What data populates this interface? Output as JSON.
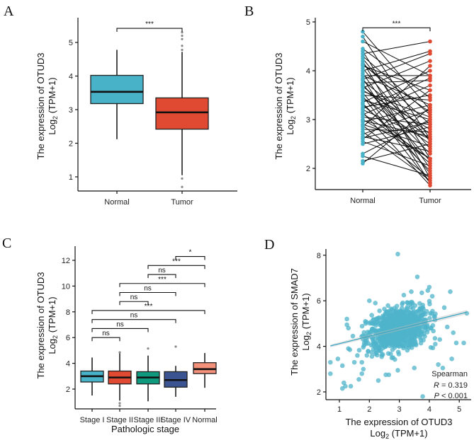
{
  "chart_data": [
    {
      "panel": "A",
      "type": "box",
      "categories": [
        "Normal",
        "Tumor"
      ],
      "ylabel_line1": "The expression of OTUD3",
      "ylabel_line2": {
        "base": "Log",
        "sub": "2",
        "rest": " (TPM+1)"
      },
      "yticks": [
        1,
        2,
        3,
        4,
        5
      ],
      "ylim": [
        0.58,
        5.7
      ],
      "colors": [
        "#48b3c8",
        "#e04a33"
      ],
      "boxes": [
        {
          "q1": 3.18,
          "median": 3.53,
          "q3": 4.02,
          "low": 2.12,
          "high": 4.78,
          "outliers": []
        },
        {
          "q1": 2.42,
          "median": 2.92,
          "q3": 3.35,
          "low": 1.05,
          "high": 4.72,
          "outliers": [
            4.78,
            4.9,
            5.1,
            5.2,
            5.3,
            0.95,
            0.7
          ]
        }
      ],
      "comparisons": [
        {
          "from": 0,
          "to": 1,
          "y": 5.42,
          "label": "***"
        }
      ]
    },
    {
      "panel": "B",
      "type": "paired",
      "categories": [
        "Normal",
        "Tumor"
      ],
      "ylabel_line1": "The expression of OTUD3",
      "ylabel_line2": {
        "base": "Log",
        "sub": "2",
        "rest": " (TPM+1)"
      },
      "yticks": [
        2,
        3,
        4,
        5
      ],
      "ylim": [
        1.57,
        5.1
      ],
      "colors": [
        "#48b3c8",
        "#e04a33"
      ],
      "pairs": [
        [
          4.8,
          3.2
        ],
        [
          4.7,
          2.6
        ],
        [
          4.6,
          3.9
        ],
        [
          4.4,
          2.2
        ],
        [
          4.35,
          4.6
        ],
        [
          4.3,
          3.1
        ],
        [
          4.2,
          1.8
        ],
        [
          4.15,
          2.9
        ],
        [
          4.1,
          3.6
        ],
        [
          4.05,
          2.4
        ],
        [
          4.0,
          4.4
        ],
        [
          3.95,
          2.0
        ],
        [
          3.9,
          3.3
        ],
        [
          3.85,
          1.7
        ],
        [
          3.8,
          2.7
        ],
        [
          3.75,
          3.8
        ],
        [
          3.7,
          2.3
        ],
        [
          3.65,
          4.2
        ],
        [
          3.6,
          2.8
        ],
        [
          3.55,
          1.9
        ],
        [
          3.5,
          3.4
        ],
        [
          3.45,
          2.5
        ],
        [
          3.4,
          3.0
        ],
        [
          3.35,
          4.0
        ],
        [
          3.3,
          2.1
        ],
        [
          3.25,
          3.5
        ],
        [
          3.2,
          2.6
        ],
        [
          3.15,
          1.65
        ],
        [
          3.1,
          3.7
        ],
        [
          3.05,
          2.9
        ],
        [
          3.0,
          2.2
        ],
        [
          2.95,
          3.3
        ],
        [
          2.9,
          2.45
        ],
        [
          2.85,
          4.1
        ],
        [
          2.8,
          2.75
        ],
        [
          2.75,
          1.75
        ],
        [
          2.7,
          3.2
        ],
        [
          2.65,
          2.35
        ],
        [
          2.6,
          3.6
        ],
        [
          2.55,
          2.05
        ],
        [
          2.5,
          2.85
        ],
        [
          2.3,
          3.0
        ],
        [
          2.25,
          1.85
        ],
        [
          2.15,
          2.5
        ],
        [
          2.1,
          3.25
        ],
        [
          3.9,
          3.9
        ],
        [
          4.25,
          2.55
        ],
        [
          3.58,
          3.05
        ],
        [
          3.33,
          1.95
        ],
        [
          3.72,
          2.15
        ],
        [
          2.98,
          2.65
        ],
        [
          4.45,
          3.45
        ],
        [
          3.12,
          2.2
        ],
        [
          3.82,
          4.35
        ],
        [
          2.62,
          2.95
        ],
        [
          3.48,
          1.7
        ],
        [
          4.12,
          3.15
        ],
        [
          3.22,
          3.85
        ],
        [
          2.88,
          1.8
        ],
        [
          3.68,
          2.6
        ]
      ],
      "comparisons": [
        {
          "from": 0,
          "to": 1,
          "y": 4.88,
          "label": "***"
        }
      ]
    },
    {
      "panel": "C",
      "type": "box",
      "categories": [
        "Stage I",
        "Stage II",
        "Stage III",
        "Stage IV",
        "Normal"
      ],
      "xlabel": "Pathologic stage",
      "ylabel_line1": "The expression of OTUD3",
      "ylabel_line2": {
        "base": "Log",
        "sub": "2",
        "rest": " (TPM+1)"
      },
      "yticks": [
        2,
        4,
        6,
        8,
        10,
        12
      ],
      "ylim": [
        0.46,
        13.1
      ],
      "colors": [
        "#48b3c8",
        "#e04a33",
        "#0f9a7f",
        "#3b5391",
        "#f3917a"
      ],
      "boxes": [
        {
          "q1": 2.55,
          "median": 3.0,
          "q3": 3.4,
          "low": 1.5,
          "high": 4.45,
          "outliers": []
        },
        {
          "q1": 2.4,
          "median": 2.9,
          "q3": 3.4,
          "low": 1.1,
          "high": 4.9,
          "outliers": [
            0.9,
            0.7,
            4.85
          ]
        },
        {
          "q1": 2.4,
          "median": 2.9,
          "q3": 3.35,
          "low": 1.05,
          "high": 4.6,
          "outliers": [
            5.15
          ]
        },
        {
          "q1": 2.15,
          "median": 2.7,
          "q3": 3.35,
          "low": 1.4,
          "high": 3.8,
          "outliers": [
            5.3
          ]
        },
        {
          "q1": 3.2,
          "median": 3.55,
          "q3": 4.05,
          "low": 2.1,
          "high": 4.8,
          "outliers": []
        }
      ],
      "comparisons": [
        {
          "from": 0,
          "to": 1,
          "y": 6.0,
          "label": "ns"
        },
        {
          "from": 0,
          "to": 2,
          "y": 6.7,
          "label": "ns"
        },
        {
          "from": 0,
          "to": 3,
          "y": 7.4,
          "label": "ns"
        },
        {
          "from": 0,
          "to": 4,
          "y": 8.1,
          "label": "***"
        },
        {
          "from": 1,
          "to": 2,
          "y": 8.8,
          "label": "ns"
        },
        {
          "from": 1,
          "to": 3,
          "y": 9.5,
          "label": "ns"
        },
        {
          "from": 1,
          "to": 4,
          "y": 10.2,
          "label": "***"
        },
        {
          "from": 2,
          "to": 3,
          "y": 10.9,
          "label": "ns"
        },
        {
          "from": 2,
          "to": 4,
          "y": 11.6,
          "label": "***"
        },
        {
          "from": 3,
          "to": 4,
          "y": 12.3,
          "label": "*"
        }
      ]
    },
    {
      "panel": "D",
      "type": "scatter",
      "xlabel_line1": "The expression of OTUD3",
      "xlabel_line2": {
        "base": "Log",
        "sub": "2",
        "rest": " (TPM+1)"
      },
      "ylabel_line1": "The expression of SMAD7",
      "ylabel_line2": {
        "base": "Log",
        "sub": "2",
        "rest": " (TPM+1)"
      },
      "xticks": [
        1,
        2,
        3,
        4,
        5
      ],
      "yticks": [
        2,
        4,
        6,
        8
      ],
      "xlim": [
        0.62,
        5.45
      ],
      "ylim": [
        1.66,
        8.3
      ],
      "color": "#4fb4cb",
      "regression": {
        "x": [
          0.7,
          5.25
        ],
        "y": [
          4.02,
          5.5
        ]
      },
      "stats": {
        "method": "Spearman",
        "r_label": "R",
        "r_text": " = 0.319",
        "p_label": "P",
        "p_text": " < 0.001"
      },
      "points": [
        [
          0.7,
          3.3
        ],
        [
          0.7,
          2.8
        ],
        [
          0.95,
          3.45
        ],
        [
          1.1,
          3.15
        ],
        [
          1.15,
          2.4
        ],
        [
          1.1,
          2.15
        ],
        [
          1.2,
          2.25
        ],
        [
          1.38,
          2.25
        ],
        [
          1.25,
          5.2
        ],
        [
          1.25,
          4.95
        ],
        [
          1.3,
          4.8
        ],
        [
          1.45,
          4.45
        ],
        [
          1.3,
          3.9
        ],
        [
          1.35,
          3.85
        ],
        [
          1.5,
          3.3
        ],
        [
          1.6,
          3.6
        ],
        [
          1.65,
          2.55
        ],
        [
          1.75,
          2.8
        ],
        [
          1.8,
          3.0
        ],
        [
          1.75,
          3.3
        ],
        [
          2.3,
          2.5
        ],
        [
          2.55,
          2.75
        ],
        [
          2.65,
          2.75
        ],
        [
          2.95,
          2.95
        ],
        [
          2.95,
          8.05
        ],
        [
          3.6,
          7.05
        ],
        [
          3.95,
          6.45
        ],
        [
          4.0,
          6.6
        ],
        [
          4.7,
          6.4
        ],
        [
          4.5,
          5.7
        ],
        [
          5.25,
          5.45
        ],
        [
          4.6,
          4.85
        ],
        [
          4.8,
          4.6
        ],
        [
          4.9,
          4.15
        ],
        [
          5.15,
          4.15
        ],
        [
          4.3,
          3.2
        ],
        [
          4.45,
          3.05
        ],
        [
          4.75,
          3.45
        ],
        [
          3.78,
          1.8
        ],
        [
          3.5,
          3.05
        ],
        [
          4.05,
          3.95
        ],
        [
          4.2,
          4.1
        ],
        [
          4.35,
          4.3
        ],
        [
          2.0,
          6.0
        ],
        [
          2.2,
          5.9
        ],
        [
          3.4,
          6.4
        ],
        [
          3.75,
          6.35
        ],
        [
          3.15,
          6.25
        ],
        [
          4.1,
          6.2
        ]
      ],
      "dense_cluster": {
        "n": 900,
        "x_mean": 2.95,
        "x_sd": 0.52,
        "y_mean": 4.75,
        "y_sd": 0.48,
        "corr": 0.32
      }
    }
  ]
}
